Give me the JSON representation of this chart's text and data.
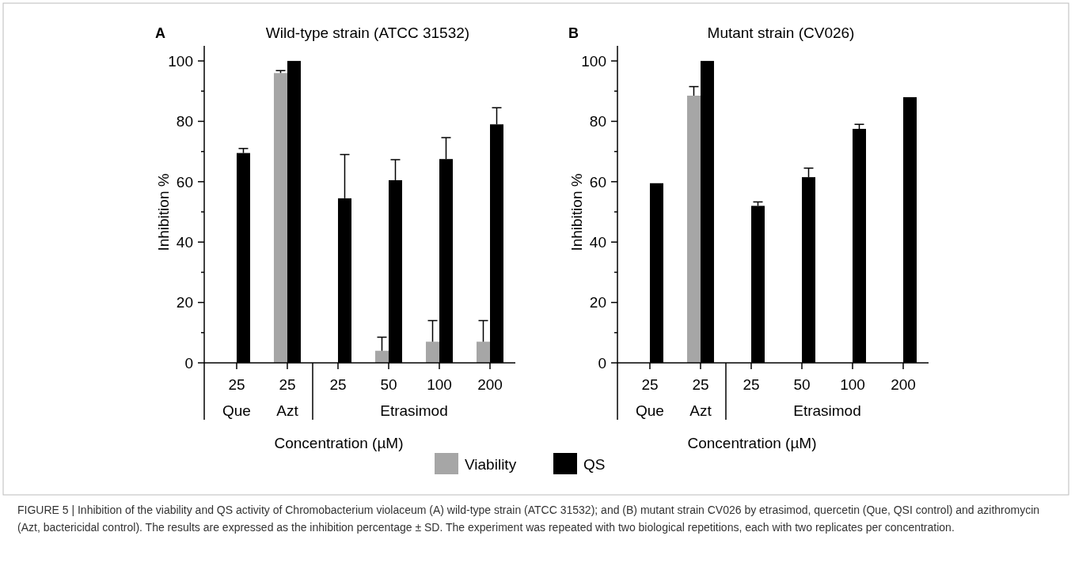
{
  "chart_data": [
    {
      "type": "bar",
      "title": "Wild-type strain (ATCC 31532)",
      "xlabel": "Concentration (µM)",
      "ylabel": "Inhibition %",
      "categories": [
        "25",
        "25",
        "25",
        "50",
        "100",
        "200"
      ],
      "series": [
        {
          "name": "Viability",
          "color": "#a6a6a6",
          "values": [
            null,
            96,
            null,
            4,
            7,
            7
          ],
          "errors": [
            null,
            [
              96,
              96.8
            ],
            null,
            [
              4,
              8.5
            ],
            [
              7,
              14
            ],
            [
              7,
              14
            ]
          ]
        },
        {
          "name": "QS",
          "color": "#000000",
          "values": [
            69.5,
            100,
            54.5,
            60.5,
            67.5,
            79
          ],
          "errors": [
            [
              69.5,
              71
            ],
            null,
            [
              54.5,
              69
            ],
            [
              60.5,
              67.3
            ],
            [
              67.5,
              74.6
            ],
            [
              79,
              84.5
            ]
          ]
        }
      ],
      "ylim": [
        0,
        105
      ],
      "yticks": [
        0,
        {
          "value": 10,
          "label": null
        },
        20,
        {
          "value": 30,
          "label": null
        },
        40,
        {
          "value": 50,
          "label": null
        },
        60,
        {
          "value": 70,
          "label": null
        },
        80,
        {
          "value": 90,
          "label": null
        },
        100
      ],
      "legend": "bottom",
      "grid": false,
      "annotations": [
        "A",
        "Que",
        "Azt",
        "Etrasimod",
        "FIGURE 5 | Inhibition of the viability and QS activity of Chromobacterium violaceum (A) wild-type strain (ATCC 31532); and (B) mutant strain CV026 by etrasimod, quercetin (Que, QSI control) and azithromycin (Azt, bactericidal control). The results are expressed as the inhibition percentage ± SD. The experiment was repeated with two biological repetitions, each with two replicates per concentration."
      ]
    },
    {
      "type": "bar",
      "title": "Mutant strain (CV026)",
      "xlabel": "Concentration (µM)",
      "ylabel": "Inhibition %",
      "categories": [
        "25",
        "25",
        "25",
        "50",
        "100",
        "200"
      ],
      "series": [
        {
          "color": "#a6a6a6",
          "values": [
            null,
            88.5,
            null,
            null,
            null,
            null
          ],
          "errors": [
            null,
            [
              88.5,
              91.5
            ],
            null,
            null,
            null,
            null
          ]
        },
        {
          "color": "#000000",
          "values": [
            59.5,
            100,
            52,
            61.5,
            77.5,
            88
          ],
          "errors": [
            null,
            null,
            [
              52,
              53.3
            ],
            [
              61.5,
              64.5
            ],
            [
              77.5,
              79
            ],
            null
          ]
        }
      ],
      "ylim": [
        0,
        105
      ],
      "yticks": [
        0,
        {
          "value": 10,
          "label": null
        },
        20,
        {
          "value": 30,
          "label": null
        },
        40,
        {
          "value": 50,
          "label": null
        },
        60,
        {
          "value": 70,
          "label": null
        },
        80,
        {
          "value": 90,
          "label": null
        },
        100
      ],
      "grid": false,
      "annotations": [
        "B",
        "Que",
        "Azt",
        "Etrasimod"
      ]
    }
  ]
}
